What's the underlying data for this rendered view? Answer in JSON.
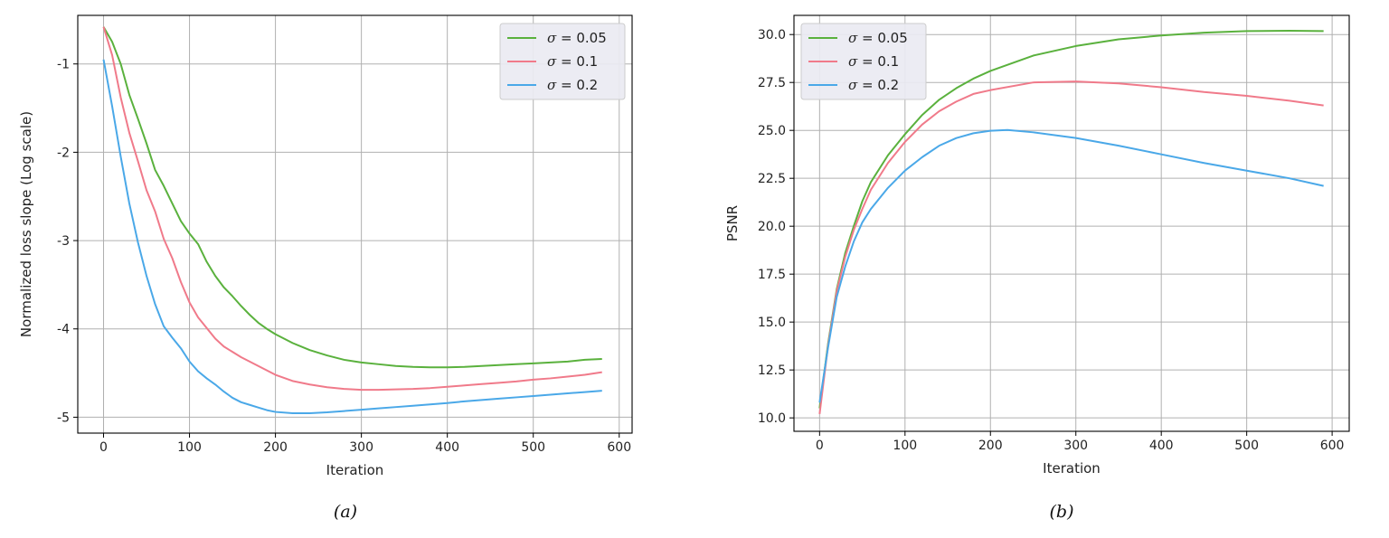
{
  "chart_data": [
    {
      "type": "line",
      "caption": "(a)",
      "title": "",
      "xlabel": "Iteration",
      "ylabel": "Normalized loss slope (Log scale)",
      "xlim": [
        -30,
        615
      ],
      "ylim": [
        -5.18,
        -0.45
      ],
      "xticks": [
        0,
        100,
        200,
        300,
        400,
        500,
        600
      ],
      "yticks": [
        -5,
        -4,
        -3,
        -2,
        -1
      ],
      "grid": true,
      "legend_placement": "upper right",
      "series": [
        {
          "name": "σ = 0.05",
          "sigma_label": "σ",
          "value_label": " = 0.05",
          "color": "#5ab13d",
          "x": [
            0,
            10,
            20,
            30,
            40,
            50,
            60,
            70,
            80,
            90,
            100,
            110,
            120,
            130,
            140,
            150,
            160,
            170,
            180,
            190,
            200,
            220,
            240,
            260,
            280,
            300,
            320,
            340,
            360,
            380,
            400,
            420,
            440,
            460,
            480,
            500,
            520,
            540,
            560,
            580
          ],
          "y": [
            -0.58,
            -0.75,
            -1.0,
            -1.35,
            -1.62,
            -1.9,
            -2.2,
            -2.38,
            -2.58,
            -2.78,
            -2.92,
            -3.04,
            -3.24,
            -3.4,
            -3.53,
            -3.63,
            -3.74,
            -3.84,
            -3.93,
            -4.0,
            -4.06,
            -4.16,
            -4.24,
            -4.3,
            -4.35,
            -4.38,
            -4.4,
            -4.42,
            -4.43,
            -4.435,
            -4.435,
            -4.43,
            -4.42,
            -4.41,
            -4.4,
            -4.39,
            -4.38,
            -4.37,
            -4.35,
            -4.34
          ]
        },
        {
          "name": "σ = 0.1",
          "sigma_label": "σ",
          "value_label": " = 0.1",
          "color": "#f07a8a",
          "x": [
            0,
            10,
            20,
            30,
            40,
            50,
            60,
            70,
            80,
            90,
            100,
            110,
            120,
            130,
            140,
            150,
            160,
            170,
            180,
            190,
            200,
            220,
            240,
            260,
            280,
            300,
            320,
            340,
            360,
            380,
            400,
            420,
            440,
            460,
            480,
            500,
            520,
            540,
            560,
            580
          ],
          "y": [
            -0.58,
            -0.9,
            -1.38,
            -1.78,
            -2.1,
            -2.43,
            -2.67,
            -2.98,
            -3.2,
            -3.47,
            -3.7,
            -3.87,
            -3.99,
            -4.11,
            -4.2,
            -4.26,
            -4.32,
            -4.37,
            -4.42,
            -4.47,
            -4.52,
            -4.59,
            -4.63,
            -4.66,
            -4.68,
            -4.69,
            -4.69,
            -4.685,
            -4.68,
            -4.67,
            -4.655,
            -4.64,
            -4.625,
            -4.61,
            -4.595,
            -4.575,
            -4.56,
            -4.54,
            -4.52,
            -4.49
          ]
        },
        {
          "name": "σ = 0.2",
          "sigma_label": "σ",
          "value_label": " = 0.2",
          "color": "#4aa8e8",
          "x": [
            0,
            10,
            20,
            30,
            40,
            50,
            60,
            70,
            80,
            90,
            100,
            110,
            120,
            130,
            140,
            150,
            160,
            170,
            180,
            190,
            200,
            220,
            240,
            260,
            280,
            300,
            320,
            340,
            360,
            380,
            400,
            420,
            440,
            460,
            480,
            500,
            520,
            540,
            560,
            580
          ],
          "y": [
            -0.95,
            -1.48,
            -2.05,
            -2.58,
            -3.02,
            -3.4,
            -3.72,
            -3.97,
            -4.1,
            -4.22,
            -4.37,
            -4.48,
            -4.56,
            -4.63,
            -4.71,
            -4.78,
            -4.83,
            -4.86,
            -4.89,
            -4.92,
            -4.94,
            -4.955,
            -4.955,
            -4.945,
            -4.93,
            -4.915,
            -4.9,
            -4.885,
            -4.87,
            -4.855,
            -4.84,
            -4.82,
            -4.805,
            -4.79,
            -4.775,
            -4.76,
            -4.745,
            -4.73,
            -4.715,
            -4.7
          ]
        }
      ]
    },
    {
      "type": "line",
      "caption": "(b)",
      "title": "",
      "xlabel": "Iteration",
      "ylabel": "PSNR",
      "xlim": [
        -30,
        620
      ],
      "ylim": [
        9.3,
        31.0
      ],
      "xticks": [
        0,
        100,
        200,
        300,
        400,
        500,
        600
      ],
      "yticks": [
        10.0,
        12.5,
        15.0,
        17.5,
        20.0,
        22.5,
        25.0,
        27.5,
        30.0
      ],
      "yticks_labels": [
        "10.0",
        "12.5",
        "15.0",
        "17.5",
        "20.0",
        "22.5",
        "25.0",
        "27.5",
        "30.0"
      ],
      "grid": true,
      "legend_placement": "upper left",
      "series": [
        {
          "name": "σ = 0.05",
          "sigma_label": "σ",
          "value_label": " = 0.05",
          "color": "#5ab13d",
          "x": [
            0,
            10,
            20,
            30,
            40,
            50,
            60,
            80,
            100,
            120,
            140,
            160,
            180,
            200,
            250,
            300,
            350,
            400,
            450,
            500,
            550,
            590
          ],
          "y": [
            10.5,
            13.9,
            16.7,
            18.6,
            20.0,
            21.3,
            22.3,
            23.7,
            24.8,
            25.8,
            26.6,
            27.2,
            27.7,
            28.1,
            28.9,
            29.4,
            29.75,
            29.95,
            30.1,
            30.18,
            30.2,
            30.18
          ]
        },
        {
          "name": "σ = 0.1",
          "sigma_label": "σ",
          "value_label": " = 0.1",
          "color": "#f07a8a",
          "x": [
            0,
            10,
            20,
            30,
            40,
            50,
            60,
            80,
            100,
            120,
            140,
            160,
            180,
            200,
            250,
            300,
            350,
            400,
            450,
            500,
            550,
            590
          ],
          "y": [
            10.2,
            13.8,
            16.6,
            18.4,
            19.8,
            20.9,
            21.9,
            23.3,
            24.4,
            25.3,
            26.0,
            26.5,
            26.9,
            27.1,
            27.5,
            27.55,
            27.45,
            27.25,
            27.0,
            26.8,
            26.55,
            26.3
          ]
        },
        {
          "name": "σ = 0.2",
          "sigma_label": "σ",
          "value_label": " = 0.2",
          "color": "#4aa8e8",
          "x": [
            0,
            10,
            20,
            30,
            40,
            50,
            60,
            80,
            100,
            120,
            140,
            160,
            180,
            200,
            220,
            250,
            300,
            350,
            400,
            450,
            500,
            550,
            590
          ],
          "y": [
            10.8,
            13.7,
            16.3,
            17.9,
            19.2,
            20.2,
            20.9,
            22.0,
            22.9,
            23.6,
            24.2,
            24.6,
            24.85,
            24.98,
            25.02,
            24.9,
            24.6,
            24.2,
            23.75,
            23.3,
            22.9,
            22.5,
            22.1
          ]
        }
      ]
    }
  ]
}
